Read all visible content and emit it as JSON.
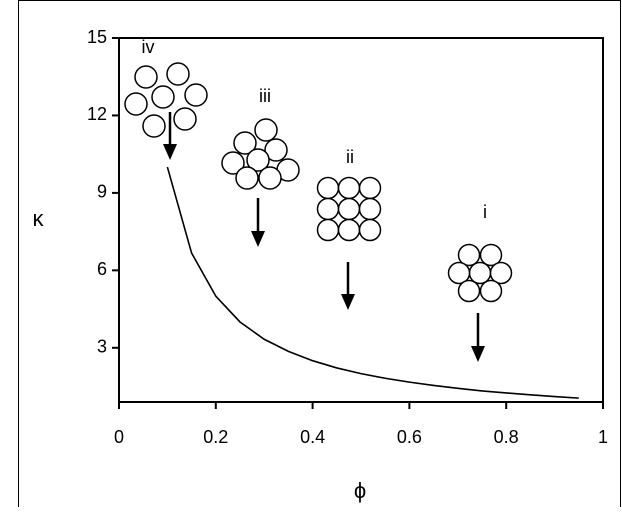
{
  "chart_data": {
    "type": "line",
    "x_label": "ϕ",
    "y_label": "κ",
    "x": [
      0.1,
      0.15,
      0.2,
      0.25,
      0.3,
      0.35,
      0.4,
      0.45,
      0.5,
      0.55,
      0.6,
      0.65,
      0.7,
      0.75,
      0.8,
      0.85,
      0.9,
      0.95
    ],
    "values": [
      10,
      6.67,
      5,
      4,
      3.33,
      2.86,
      2.5,
      2.22,
      2,
      1.82,
      1.67,
      1.54,
      1.43,
      1.33,
      1.25,
      1.18,
      1.11,
      1.05
    ],
    "color": "#000000",
    "xlim": [
      0,
      1
    ],
    "xticks": [
      0,
      0.2,
      0.4,
      0.6,
      0.8,
      1
    ],
    "ylim": [
      0.9,
      15
    ],
    "yticks": [
      3,
      6,
      9,
      12,
      15
    ],
    "grid": false,
    "annotations": [
      "iv",
      "iii",
      "ii",
      "i"
    ]
  }
}
